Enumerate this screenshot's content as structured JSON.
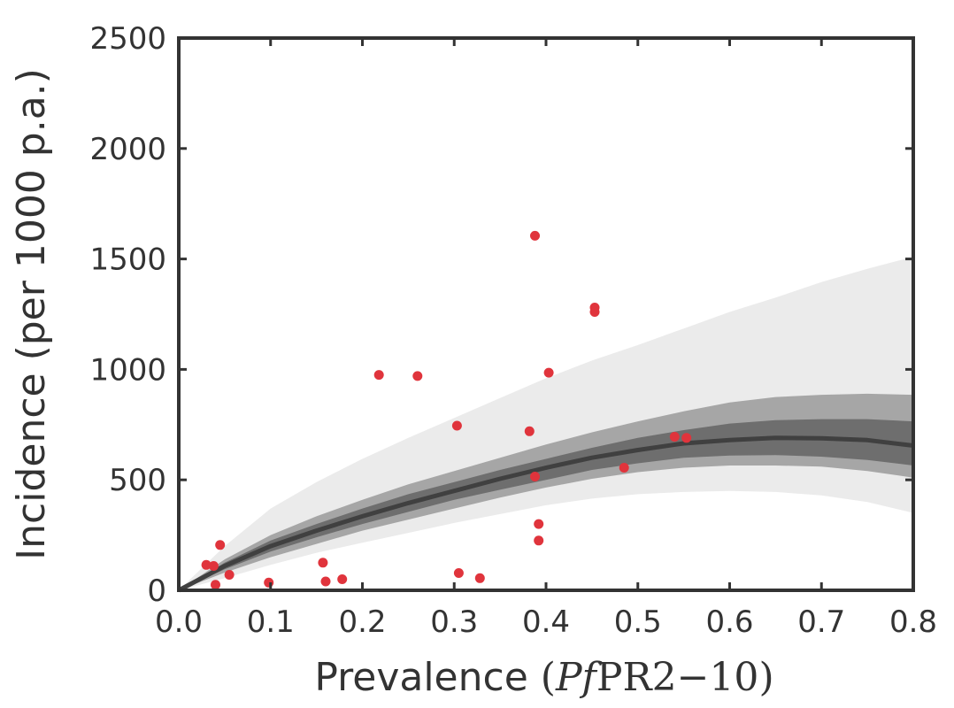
{
  "chart_data": {
    "type": "scatter",
    "title": "",
    "xlabel": "Prevalence",
    "xlabel_math_italic": "Pf",
    "xlabel_math_rest": "PR2−10",
    "ylabel": "Incidence (per 1000 p.a.)",
    "xlim": [
      0.0,
      0.8
    ],
    "ylim": [
      0,
      2500
    ],
    "x_ticks": [
      0.0,
      0.1,
      0.2,
      0.3,
      0.4,
      0.5,
      0.6,
      0.7,
      0.8
    ],
    "x_tick_labels": [
      "0.0",
      "0.1",
      "0.2",
      "0.3",
      "0.4",
      "0.5",
      "0.6",
      "0.7",
      "0.8"
    ],
    "y_ticks": [
      0,
      500,
      1000,
      1500,
      2000,
      2500
    ],
    "y_tick_labels": [
      "0",
      "500",
      "1000",
      "1500",
      "2000",
      "2500"
    ],
    "grid": false,
    "colors": {
      "points": "#e0343c",
      "median_line": "#404040",
      "band_inner": "#6e6e6e",
      "band_middle": "#a6a6a6",
      "band_outer": "#ebebeb",
      "axes": "#333333"
    },
    "model_fit": {
      "x": [
        0.0,
        0.05,
        0.1,
        0.15,
        0.2,
        0.25,
        0.3,
        0.35,
        0.4,
        0.45,
        0.5,
        0.55,
        0.6,
        0.65,
        0.7,
        0.75,
        0.8
      ],
      "median": [
        0,
        110,
        200,
        270,
        335,
        395,
        450,
        505,
        555,
        600,
        635,
        665,
        680,
        690,
        688,
        680,
        655
      ],
      "inner_lower": [
        0,
        95,
        175,
        240,
        300,
        355,
        410,
        455,
        500,
        545,
        575,
        600,
        610,
        612,
        605,
        590,
        565
      ],
      "inner_upper": [
        0,
        125,
        225,
        300,
        370,
        435,
        490,
        545,
        595,
        645,
        690,
        725,
        755,
        770,
        775,
        775,
        765
      ],
      "middle_lower": [
        0,
        80,
        150,
        210,
        270,
        320,
        370,
        420,
        465,
        505,
        535,
        555,
        565,
        565,
        560,
        540,
        510
      ],
      "middle_upper": [
        0,
        140,
        250,
        335,
        410,
        480,
        540,
        600,
        660,
        715,
        765,
        810,
        850,
        875,
        885,
        890,
        885
      ],
      "outer_lower": [
        0,
        55,
        115,
        170,
        215,
        260,
        305,
        345,
        385,
        415,
        435,
        445,
        450,
        445,
        430,
        400,
        350
      ],
      "outer_upper": [
        0,
        200,
        370,
        490,
        595,
        690,
        780,
        870,
        960,
        1040,
        1110,
        1185,
        1260,
        1325,
        1395,
        1455,
        1510
      ]
    },
    "points": [
      {
        "x": 0.03,
        "y": 115
      },
      {
        "x": 0.038,
        "y": 110
      },
      {
        "x": 0.04,
        "y": 25
      },
      {
        "x": 0.045,
        "y": 205
      },
      {
        "x": 0.055,
        "y": 70
      },
      {
        "x": 0.098,
        "y": 35
      },
      {
        "x": 0.157,
        "y": 125
      },
      {
        "x": 0.16,
        "y": 40
      },
      {
        "x": 0.178,
        "y": 50
      },
      {
        "x": 0.218,
        "y": 975
      },
      {
        "x": 0.26,
        "y": 970
      },
      {
        "x": 0.303,
        "y": 745
      },
      {
        "x": 0.305,
        "y": 78
      },
      {
        "x": 0.328,
        "y": 55
      },
      {
        "x": 0.382,
        "y": 720
      },
      {
        "x": 0.388,
        "y": 1605
      },
      {
        "x": 0.388,
        "y": 515
      },
      {
        "x": 0.392,
        "y": 300
      },
      {
        "x": 0.392,
        "y": 225
      },
      {
        "x": 0.403,
        "y": 985
      },
      {
        "x": 0.453,
        "y": 1280
      },
      {
        "x": 0.453,
        "y": 1260
      },
      {
        "x": 0.485,
        "y": 555
      },
      {
        "x": 0.54,
        "y": 695
      },
      {
        "x": 0.553,
        "y": 690
      }
    ]
  }
}
